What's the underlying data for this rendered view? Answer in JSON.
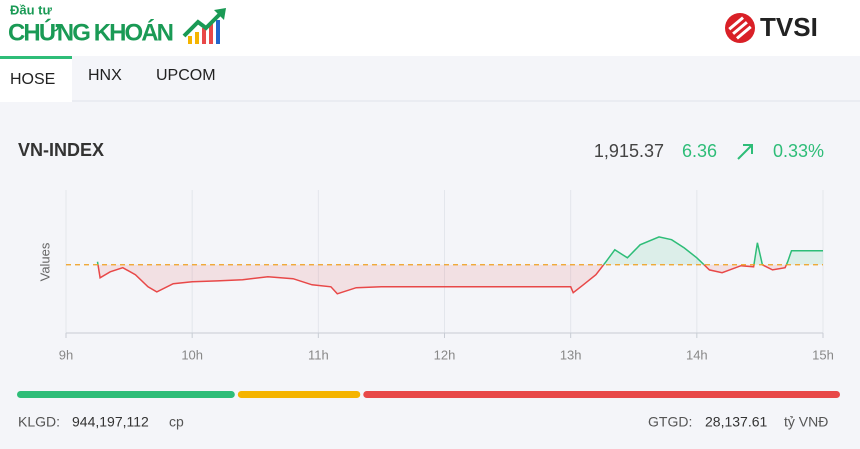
{
  "header": {
    "brand_small": "Đầu tư",
    "brand_big": "CHỨNG KHOÁN",
    "partner": "TVSI"
  },
  "tabs": [
    "HOSE",
    "HNX",
    "UPCOM"
  ],
  "index": {
    "name": "VN-INDEX",
    "value": "1,915.37",
    "change": "6.36",
    "change_percent": "0.33%"
  },
  "chart_data": {
    "type": "line",
    "y_label": "Values",
    "x": [
      9.25,
      9.27,
      9.35,
      9.45,
      9.55,
      9.65,
      9.72,
      9.85,
      10.0,
      10.2,
      10.4,
      10.6,
      10.8,
      10.95,
      11.1,
      11.15,
      11.3,
      11.5,
      13.0,
      13.02,
      13.1,
      13.2,
      13.28,
      13.35,
      13.45,
      13.55,
      13.7,
      13.8,
      13.9,
      14.0,
      14.1,
      14.2,
      14.35,
      14.45,
      14.48,
      14.52,
      14.6,
      14.7,
      14.72,
      14.75,
      15.0
    ],
    "series": [
      {
        "name": "VN-INDEX",
        "values": [
          1910.4,
          1903.1,
          1905.8,
          1907.7,
          1904.5,
          1899.0,
          1896.7,
          1900.4,
          1901.3,
          1901.7,
          1902.2,
          1903.6,
          1902.7,
          1899.9,
          1899.0,
          1895.8,
          1898.6,
          1899.0,
          1899.0,
          1896.3,
          1899.9,
          1904.5,
          1910.4,
          1915.8,
          1912.2,
          1918.1,
          1921.7,
          1920.4,
          1916.7,
          1912.2,
          1906.7,
          1905.4,
          1908.6,
          1908.1,
          1919.0,
          1909.0,
          1906.7,
          1907.7,
          1910.4,
          1915.4,
          1915.4
        ]
      }
    ],
    "reference": 1909.01,
    "up_color": "#2ebd78",
    "down_color": "#e84848",
    "xlim": [
      9,
      15
    ],
    "ylim": [
      1878,
      1943
    ],
    "xticks": [
      {
        "value": 9,
        "label": "9h"
      },
      {
        "value": 10,
        "label": "10h"
      },
      {
        "value": 11,
        "label": "11h"
      },
      {
        "value": 12,
        "label": "12h"
      },
      {
        "value": 13,
        "label": "13h"
      },
      {
        "value": 14,
        "label": "14h"
      },
      {
        "value": 15,
        "label": "15h"
      }
    ],
    "grid": true
  },
  "breadth": {
    "values": [
      26.5,
      14.9,
      58.0
    ],
    "colors": [
      "#2ebd78",
      "#f5b400",
      "#e84848"
    ]
  },
  "stats": {
    "volume_label": "KLGD:",
    "volume": "944,197,112",
    "volume_unit": "cp",
    "value_label": "GTGD:",
    "value": "28,137.61",
    "value_unit": "tỷ VNĐ"
  }
}
